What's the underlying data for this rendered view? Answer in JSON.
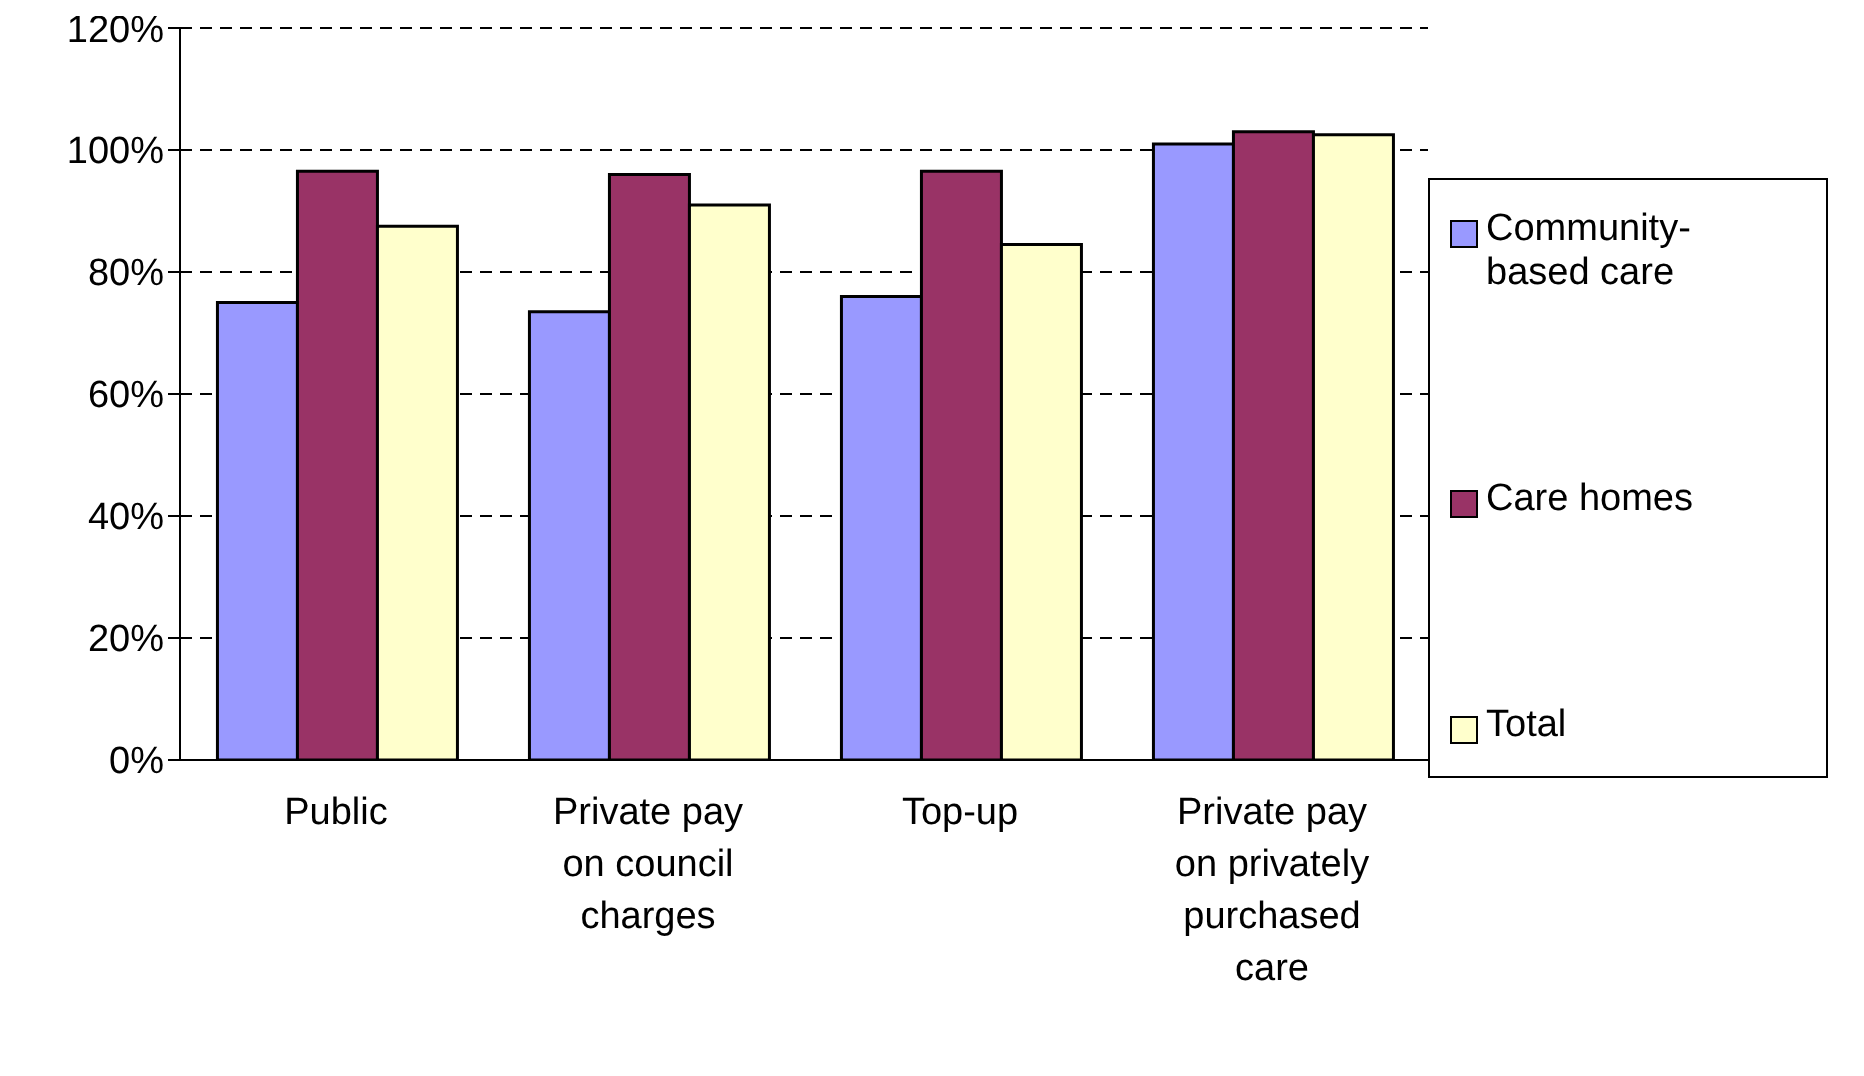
{
  "chart_data": {
    "type": "bar",
    "categories": [
      "Public",
      "Private pay on council charges",
      "Top-up",
      "Private pay on privately purchased care"
    ],
    "series": [
      {
        "name": "Community-based care",
        "color": "#9999ff",
        "values": [
          75,
          73.5,
          76,
          101
        ]
      },
      {
        "name": "Care homes",
        "color": "#993366",
        "values": [
          96.5,
          96,
          96.5,
          103
        ]
      },
      {
        "name": "Total",
        "color": "#ffffcc",
        "values": [
          87.5,
          91,
          84.5,
          102.5
        ]
      }
    ],
    "ylim": [
      0,
      120
    ],
    "yticks": [
      {
        "value": 0,
        "label": "0%"
      },
      {
        "value": 20,
        "label": "20%"
      },
      {
        "value": 40,
        "label": "40%"
      },
      {
        "value": 60,
        "label": "60%"
      },
      {
        "value": 80,
        "label": "80%"
      },
      {
        "value": 100,
        "label": "100%"
      },
      {
        "value": 120,
        "label": "120%"
      }
    ],
    "grid": "y",
    "legend": "right"
  }
}
